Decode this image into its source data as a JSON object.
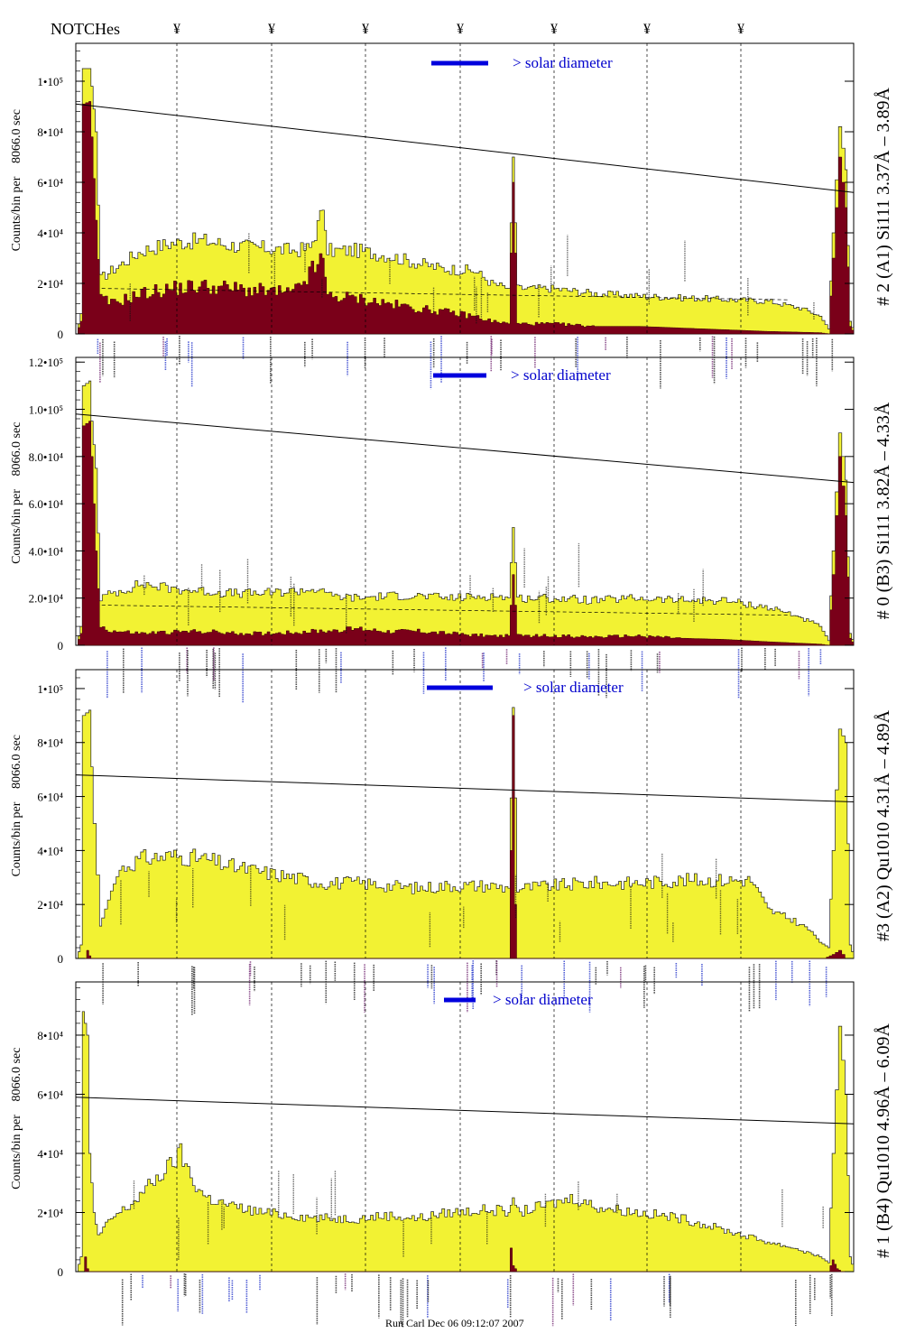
{
  "figure": {
    "notch_label": "NOTCHes",
    "notch_marker": "¥",
    "legend_text": "> solar diameter",
    "ylabel_counts": "Counts/bin per",
    "ylabel_exposure": "8066.0 sec",
    "footer_text": "Run Carl Dec 06 09:12:07 2007",
    "colors": {
      "upper_fill": "#f2f233",
      "lower_fill": "#7a0019",
      "legend_bar": "#0000dd",
      "legend_text": "#0000cc",
      "axis": "#000000"
    }
  },
  "chart_data": [
    {
      "type": "area",
      "panel_label": "# 2 (A1) Si111  3.37Å – 3.89Å",
      "ylim": [
        0,
        115000
      ],
      "yticks": [
        "0",
        "2•10⁴",
        "4•10⁴",
        "6•10⁴",
        "8•10⁴",
        "1•10⁵"
      ],
      "ytick_values": [
        0,
        20000,
        40000,
        60000,
        80000,
        100000
      ],
      "edge_line": [
        91000,
        56000
      ],
      "dashed_level": 18000,
      "upper_profile": [
        [
          0,
          0
        ],
        [
          1,
          8000
        ],
        [
          1.5,
          105000
        ],
        [
          3,
          105000
        ],
        [
          3.5,
          98000
        ],
        [
          4.5,
          80000
        ],
        [
          5.5,
          22000
        ],
        [
          8,
          25000
        ],
        [
          15,
          33000
        ],
        [
          22,
          36000
        ],
        [
          29,
          37000
        ],
        [
          36,
          35000
        ],
        [
          43,
          34000
        ],
        [
          50,
          33000
        ],
        [
          54,
          34000
        ],
        [
          57,
          49000
        ],
        [
          58,
          33000
        ],
        [
          65,
          33000
        ],
        [
          72,
          31000
        ],
        [
          79,
          28000
        ],
        [
          84,
          26000
        ],
        [
          92,
          25000
        ],
        [
          96,
          20000
        ],
        [
          100,
          18000
        ],
        [
          101,
          70000
        ],
        [
          102,
          18000
        ],
        [
          110,
          18000
        ],
        [
          120,
          16000
        ],
        [
          130,
          15000
        ],
        [
          145,
          14000
        ],
        [
          160,
          13000
        ],
        [
          168,
          10000
        ],
        [
          172,
          7000
        ],
        [
          174,
          2000
        ],
        [
          175,
          40000
        ],
        [
          176.5,
          82000
        ],
        [
          178,
          65000
        ],
        [
          179,
          5000
        ],
        [
          180,
          0
        ]
      ],
      "lower_profile": [
        [
          0,
          0
        ],
        [
          1,
          5000
        ],
        [
          1.5,
          91000
        ],
        [
          3,
          92000
        ],
        [
          3.5,
          78000
        ],
        [
          4.5,
          45000
        ],
        [
          5.5,
          14000
        ],
        [
          8,
          12000
        ],
        [
          15,
          16000
        ],
        [
          22,
          18000
        ],
        [
          29,
          19000
        ],
        [
          36,
          18000
        ],
        [
          43,
          17000
        ],
        [
          50,
          16000
        ],
        [
          57,
          30000
        ],
        [
          58,
          15000
        ],
        [
          65,
          14000
        ],
        [
          72,
          12000
        ],
        [
          79,
          10000
        ],
        [
          84,
          9000
        ],
        [
          92,
          7000
        ],
        [
          96,
          5000
        ],
        [
          100,
          4000
        ],
        [
          101,
          60000
        ],
        [
          102,
          4000
        ],
        [
          110,
          4000
        ],
        [
          120,
          3000
        ],
        [
          130,
          3000
        ],
        [
          145,
          2000
        ],
        [
          160,
          1000
        ],
        [
          172,
          500
        ],
        [
          174,
          0
        ],
        [
          175,
          30000
        ],
        [
          176.5,
          70000
        ],
        [
          178,
          50000
        ],
        [
          179,
          3000
        ],
        [
          180,
          0
        ]
      ]
    },
    {
      "type": "area",
      "panel_label": "# 0 (B3) Si111  3.82Å – 4.33Å",
      "ylim": [
        0,
        122000
      ],
      "yticks": [
        "0",
        "2.0•10⁴",
        "4.0•10⁴",
        "6.0•10⁴",
        "8.0•10⁴",
        "1.0•10⁵",
        "1.2•10⁵"
      ],
      "ytick_values": [
        0,
        20000,
        40000,
        60000,
        80000,
        100000,
        120000
      ],
      "edge_line": [
        98000,
        69000
      ],
      "dashed_level": 17000,
      "upper_profile": [
        [
          0,
          0
        ],
        [
          1,
          8000
        ],
        [
          1.5,
          110000
        ],
        [
          3,
          112000
        ],
        [
          3.5,
          95000
        ],
        [
          4.5,
          75000
        ],
        [
          5.5,
          20000
        ],
        [
          8,
          22000
        ],
        [
          15,
          26000
        ],
        [
          22,
          24000
        ],
        [
          29,
          23000
        ],
        [
          36,
          22000
        ],
        [
          43,
          22000
        ],
        [
          57,
          24000
        ],
        [
          58,
          21000
        ],
        [
          65,
          20000
        ],
        [
          72,
          21000
        ],
        [
          79,
          21000
        ],
        [
          86,
          20000
        ],
        [
          96,
          21000
        ],
        [
          100,
          20000
        ],
        [
          101,
          50000
        ],
        [
          102,
          20000
        ],
        [
          110,
          20000
        ],
        [
          120,
          19000
        ],
        [
          130,
          20000
        ],
        [
          140,
          19000
        ],
        [
          150,
          19000
        ],
        [
          160,
          16000
        ],
        [
          166,
          13000
        ],
        [
          172,
          8000
        ],
        [
          174,
          2000
        ],
        [
          175,
          40000
        ],
        [
          176.5,
          90000
        ],
        [
          178,
          70000
        ],
        [
          179,
          5000
        ],
        [
          180,
          0
        ]
      ],
      "lower_profile": [
        [
          0,
          0
        ],
        [
          1,
          5000
        ],
        [
          1.5,
          93000
        ],
        [
          3,
          95000
        ],
        [
          3.5,
          80000
        ],
        [
          4.5,
          40000
        ],
        [
          5.5,
          8000
        ],
        [
          8,
          6000
        ],
        [
          15,
          5000
        ],
        [
          29,
          6000
        ],
        [
          36,
          5000
        ],
        [
          43,
          5000
        ],
        [
          57,
          6000
        ],
        [
          65,
          7000
        ],
        [
          72,
          6000
        ],
        [
          79,
          6000
        ],
        [
          86,
          5000
        ],
        [
          96,
          4000
        ],
        [
          100,
          4000
        ],
        [
          101,
          30000
        ],
        [
          102,
          4000
        ],
        [
          110,
          4000
        ],
        [
          120,
          3500
        ],
        [
          130,
          4000
        ],
        [
          140,
          3000
        ],
        [
          150,
          2500
        ],
        [
          160,
          1500
        ],
        [
          172,
          500
        ],
        [
          174,
          0
        ],
        [
          175,
          30000
        ],
        [
          176.5,
          80000
        ],
        [
          178,
          55000
        ],
        [
          179,
          3000
        ],
        [
          180,
          0
        ]
      ]
    },
    {
      "type": "area",
      "panel_label": "#3 (A2) Qu1010  4.31Å – 4.89Å",
      "ylim": [
        0,
        107000
      ],
      "yticks": [
        "0",
        "2•10⁴",
        "4•10⁴",
        "6•10⁴",
        "8•10⁴",
        "1•10⁵"
      ],
      "ytick_values": [
        0,
        20000,
        40000,
        60000,
        80000,
        100000
      ],
      "edge_line": [
        68000,
        58000
      ],
      "dashed_level": null,
      "upper_profile": [
        [
          0,
          0
        ],
        [
          1,
          5000
        ],
        [
          1.5,
          90000
        ],
        [
          3,
          92000
        ],
        [
          4,
          50000
        ],
        [
          5.5,
          12000
        ],
        [
          6,
          15000
        ],
        [
          8,
          25000
        ],
        [
          10,
          33000
        ],
        [
          15,
          37000
        ],
        [
          22,
          38000
        ],
        [
          29,
          37000
        ],
        [
          36,
          34000
        ],
        [
          43,
          32000
        ],
        [
          50,
          30000
        ],
        [
          57,
          28000
        ],
        [
          65,
          28000
        ],
        [
          72,
          27000
        ],
        [
          79,
          26000
        ],
        [
          86,
          27000
        ],
        [
          96,
          27000
        ],
        [
          100,
          26000
        ],
        [
          101,
          93000
        ],
        [
          102,
          26000
        ],
        [
          110,
          27000
        ],
        [
          120,
          28000
        ],
        [
          130,
          28000
        ],
        [
          140,
          29000
        ],
        [
          150,
          29000
        ],
        [
          156,
          29000
        ],
        [
          160,
          18000
        ],
        [
          166,
          14000
        ],
        [
          170,
          10000
        ],
        [
          172,
          6000
        ],
        [
          174,
          4000
        ],
        [
          175,
          40000
        ],
        [
          176.5,
          85000
        ],
        [
          178,
          80000
        ],
        [
          179,
          5000
        ],
        [
          180,
          0
        ]
      ],
      "lower_profile": [
        [
          0,
          0
        ],
        [
          2,
          0
        ],
        [
          2.5,
          3000
        ],
        [
          3,
          1000
        ],
        [
          3.5,
          0
        ],
        [
          100,
          0
        ],
        [
          100.5,
          40000
        ],
        [
          101,
          90000
        ],
        [
          101.5,
          20000
        ],
        [
          102,
          0
        ],
        [
          173,
          0
        ],
        [
          175,
          1500
        ],
        [
          176.5,
          3000
        ],
        [
          178,
          0
        ],
        [
          180,
          0
        ]
      ]
    },
    {
      "type": "area",
      "panel_label": "# 1 (B4) Qu1010 4.96Å – 6.09Å",
      "ylim": [
        0,
        98000
      ],
      "yticks": [
        "0",
        "2•10⁴",
        "4•10⁴",
        "6•10⁴",
        "8•10⁴"
      ],
      "ytick_values": [
        0,
        20000,
        40000,
        60000,
        80000
      ],
      "edge_line": [
        59000,
        50000
      ],
      "dashed_level": null,
      "upper_profile": [
        [
          0,
          0
        ],
        [
          1,
          5000
        ],
        [
          1.5,
          88000
        ],
        [
          2.5,
          80000
        ],
        [
          3,
          40000
        ],
        [
          4,
          20000
        ],
        [
          5,
          12000
        ],
        [
          8,
          18000
        ],
        [
          12,
          22000
        ],
        [
          16,
          28000
        ],
        [
          21,
          35000
        ],
        [
          24,
          40000
        ],
        [
          27,
          30000
        ],
        [
          30,
          25000
        ],
        [
          36,
          22000
        ],
        [
          43,
          20000
        ],
        [
          50,
          19000
        ],
        [
          57,
          18000
        ],
        [
          65,
          18000
        ],
        [
          72,
          19000
        ],
        [
          79,
          18000
        ],
        [
          86,
          20000
        ],
        [
          96,
          21000
        ],
        [
          100,
          20000
        ],
        [
          101,
          25000
        ],
        [
          102,
          20000
        ],
        [
          110,
          23000
        ],
        [
          115,
          25000
        ],
        [
          120,
          22000
        ],
        [
          130,
          20000
        ],
        [
          140,
          18000
        ],
        [
          150,
          14000
        ],
        [
          160,
          10000
        ],
        [
          166,
          8000
        ],
        [
          172,
          5000
        ],
        [
          174,
          3000
        ],
        [
          175,
          40000
        ],
        [
          176.5,
          83000
        ],
        [
          178,
          60000
        ],
        [
          179,
          5000
        ],
        [
          180,
          0
        ]
      ],
      "lower_profile": [
        [
          0,
          0
        ],
        [
          1.5,
          0
        ],
        [
          2,
          5000
        ],
        [
          2.5,
          1000
        ],
        [
          3,
          0
        ],
        [
          100,
          0
        ],
        [
          100.5,
          8000
        ],
        [
          101,
          2000
        ],
        [
          102,
          0
        ],
        [
          174,
          0
        ],
        [
          175,
          4000
        ],
        [
          176,
          1000
        ],
        [
          177,
          0
        ],
        [
          180,
          0
        ]
      ]
    }
  ]
}
